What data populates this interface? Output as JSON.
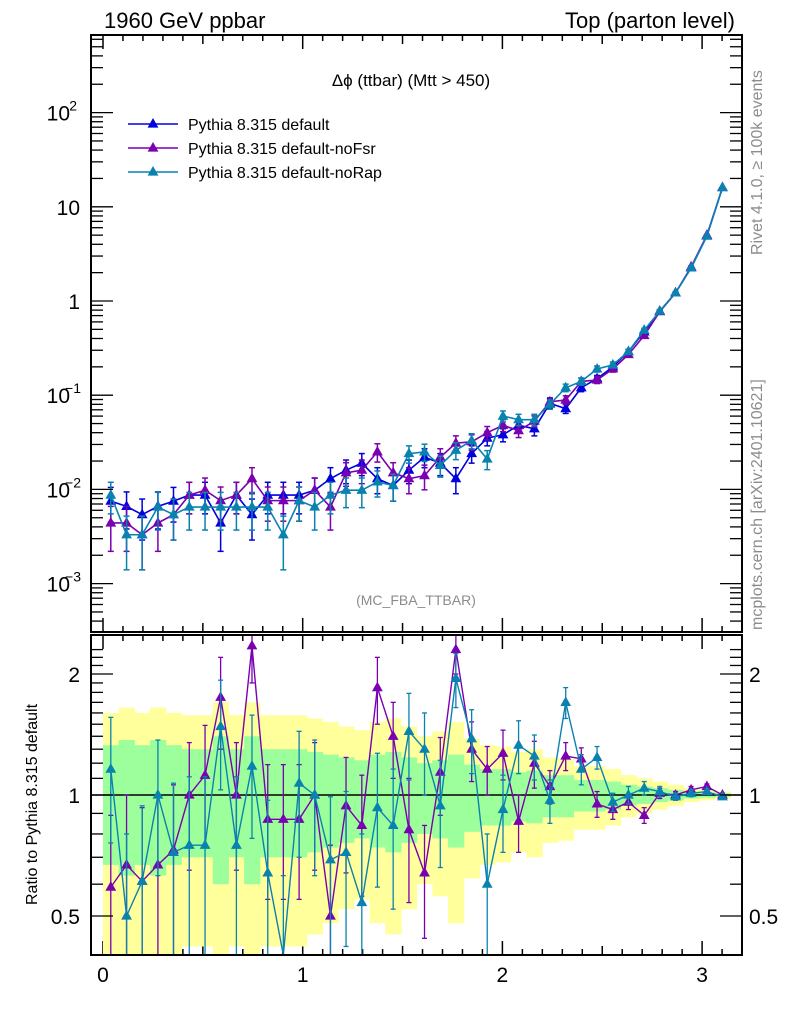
{
  "header": {
    "left_title": "1960 GeV ppbar",
    "right_title": "Top (parton level)"
  },
  "side_labels": {
    "rivet": "Rivet 4.1.0, ≥ 100k events",
    "mcplots": "mcplots.cern.ch [arXiv:2401.10621]"
  },
  "colors": {
    "default": "#0000dd",
    "noFsr": "#7a00b0",
    "noRap": "#0a82b0",
    "band_1sigma": "#9cff9c",
    "band_2sigma": "#ffff9c"
  },
  "chart_data": [
    {
      "type": "line",
      "panel": "main",
      "title": "Δϕ (ttbar) (Mtt > 450)",
      "analysis_label": "(MC_FBA_TTBAR)",
      "xlabel": "",
      "ylabel": "",
      "yscale": "log",
      "xlim": [
        0,
        3.2
      ],
      "ylim": [
        0.0003,
        900
      ],
      "x_ticks": [
        "0",
        "1",
        "2",
        "3"
      ],
      "y_ticks": [
        "10^-3",
        "10^-2",
        "10^-1",
        "1",
        "10",
        "10^2"
      ],
      "legend": [
        "Pythia 8.315 default",
        "Pythia 8.315 default-noFsr",
        "Pythia 8.315 default-noRap"
      ],
      "legend_position": "top-left",
      "x": [
        0.039,
        0.118,
        0.196,
        0.275,
        0.353,
        0.432,
        0.511,
        0.589,
        0.668,
        0.746,
        0.825,
        0.903,
        0.982,
        1.06,
        1.139,
        1.217,
        1.296,
        1.374,
        1.453,
        1.532,
        1.61,
        1.689,
        1.767,
        1.846,
        1.924,
        2.003,
        2.081,
        2.16,
        2.238,
        2.317,
        2.395,
        2.474,
        2.553,
        2.631,
        2.71,
        2.788,
        2.867,
        2.945,
        3.024,
        3.102
      ],
      "series": [
        {
          "name": "Pythia 8.315 default",
          "values": [
            0.0075,
            0.0066,
            0.0054,
            0.0066,
            0.0075,
            0.0087,
            0.0087,
            0.0044,
            0.0087,
            0.0054,
            0.0087,
            0.0087,
            0.0087,
            0.0098,
            0.013,
            0.016,
            0.019,
            0.013,
            0.011,
            0.016,
            0.022,
            0.019,
            0.013,
            0.024,
            0.035,
            0.038,
            0.048,
            0.044,
            0.082,
            0.072,
            0.12,
            0.15,
            0.2,
            0.29,
            0.47,
            0.78,
            1.22,
            2.25,
            4.9,
            16.0
          ],
          "errors": [
            0.003,
            0.0028,
            0.0025,
            0.0028,
            0.003,
            0.0032,
            0.0032,
            0.0022,
            0.0032,
            0.0025,
            0.0032,
            0.0032,
            0.0032,
            0.0034,
            0.004,
            0.0045,
            0.005,
            0.004,
            0.0035,
            0.0045,
            0.005,
            0.005,
            0.004,
            0.005,
            0.006,
            0.006,
            0.007,
            0.007,
            0.009,
            0.008,
            0.011,
            0.012,
            0.014,
            0.017,
            0.022,
            0.028,
            0.035,
            0.047,
            0.07,
            0.13
          ]
        },
        {
          "name": "Pythia 8.315 default-noFsr",
          "values": [
            0.0044,
            0.0044,
            0.0033,
            0.0044,
            0.0054,
            0.0087,
            0.0098,
            0.0076,
            0.0087,
            0.013,
            0.0076,
            0.0076,
            0.0076,
            0.0098,
            0.0065,
            0.015,
            0.016,
            0.025,
            0.015,
            0.013,
            0.014,
            0.022,
            0.031,
            0.032,
            0.04,
            0.048,
            0.042,
            0.053,
            0.085,
            0.089,
            0.14,
            0.145,
            0.19,
            0.27,
            0.43,
            0.77,
            1.22,
            2.3,
            5.0,
            16.0
          ],
          "errors": [
            0.0022,
            0.0022,
            0.0019,
            0.0022,
            0.0025,
            0.0032,
            0.0034,
            0.003,
            0.0032,
            0.004,
            0.003,
            0.003,
            0.003,
            0.0034,
            0.0028,
            0.0042,
            0.0045,
            0.0055,
            0.0042,
            0.004,
            0.0041,
            0.005,
            0.006,
            0.006,
            0.0065,
            0.007,
            0.0065,
            0.0073,
            0.009,
            0.0095,
            0.012,
            0.012,
            0.014,
            0.016,
            0.021,
            0.028,
            0.035,
            0.048,
            0.07,
            0.13
          ]
        },
        {
          "name": "Pythia 8.315 default-noRap",
          "values": [
            0.0087,
            0.0033,
            0.0033,
            0.0065,
            0.0054,
            0.0065,
            0.0065,
            0.0065,
            0.0065,
            0.0065,
            0.0065,
            0.0033,
            0.0076,
            0.0065,
            0.0087,
            0.0098,
            0.0098,
            0.012,
            0.011,
            0.024,
            0.025,
            0.018,
            0.026,
            0.033,
            0.021,
            0.06,
            0.055,
            0.055,
            0.08,
            0.12,
            0.14,
            0.19,
            0.21,
            0.29,
            0.49,
            0.78,
            1.22,
            2.25,
            4.9,
            16.0
          ],
          "errors": [
            0.0032,
            0.0019,
            0.0019,
            0.0028,
            0.0025,
            0.0028,
            0.0028,
            0.0028,
            0.0028,
            0.0028,
            0.0028,
            0.0019,
            0.003,
            0.0028,
            0.0032,
            0.0034,
            0.0034,
            0.0037,
            0.0035,
            0.005,
            0.0052,
            0.0045,
            0.0053,
            0.006,
            0.0048,
            0.008,
            0.0077,
            0.0077,
            0.009,
            0.011,
            0.012,
            0.014,
            0.015,
            0.017,
            0.022,
            0.028,
            0.035,
            0.047,
            0.07,
            0.13
          ]
        }
      ]
    },
    {
      "type": "line",
      "panel": "ratio",
      "ylabel": "Ratio to Pythia 8.315 default",
      "yscale": "log",
      "xlim": [
        0,
        3.2
      ],
      "ylim": [
        0.4,
        2.3
      ],
      "x_ticks": [
        "0",
        "1",
        "2",
        "3"
      ],
      "y_ticks": [
        "0.5",
        "1",
        "2"
      ],
      "reference_line": 1,
      "bands": {
        "one_sigma_half_width": [
          0.33,
          0.37,
          0.33,
          0.37,
          0.33,
          0.3,
          0.3,
          0.4,
          0.3,
          0.4,
          0.3,
          0.3,
          0.3,
          0.28,
          0.26,
          0.24,
          0.22,
          0.26,
          0.28,
          0.24,
          0.2,
          0.22,
          0.26,
          0.19,
          0.16,
          0.16,
          0.14,
          0.15,
          0.12,
          0.12,
          0.09,
          0.09,
          0.08,
          0.06,
          0.05,
          0.04,
          0.03,
          0.02,
          0.015,
          0.01
        ],
        "two_sigma_half_width": [
          0.6,
          0.65,
          0.6,
          0.65,
          0.6,
          0.58,
          0.58,
          0.7,
          0.58,
          0.7,
          0.58,
          0.58,
          0.58,
          0.55,
          0.52,
          0.48,
          0.45,
          0.52,
          0.55,
          0.48,
          0.4,
          0.44,
          0.52,
          0.38,
          0.33,
          0.32,
          0.28,
          0.3,
          0.24,
          0.23,
          0.18,
          0.18,
          0.16,
          0.12,
          0.1,
          0.08,
          0.06,
          0.04,
          0.03,
          0.02
        ]
      },
      "series": [
        {
          "name": "Pythia 8.315 default-noFsr",
          "values": [
            0.59,
            0.67,
            0.61,
            0.67,
            0.73,
            1.0,
            1.12,
            1.75,
            1.0,
            2.35,
            0.87,
            0.87,
            0.87,
            1.0,
            0.5,
            0.94,
            0.84,
            1.85,
            1.4,
            0.82,
            0.64,
            1.14,
            2.3,
            1.3,
            1.16,
            1.27,
            0.86,
            1.2,
            1.05,
            1.25,
            1.23,
            0.95,
            0.92,
            0.96,
            0.89,
            1.01,
            1.0,
            1.03,
            1.05,
            1.0
          ],
          "errors": [
            0.3,
            0.33,
            0.32,
            0.33,
            0.33,
            0.35,
            0.37,
            0.45,
            0.35,
            0.45,
            0.32,
            0.32,
            0.32,
            0.35,
            0.25,
            0.3,
            0.28,
            0.35,
            0.3,
            0.28,
            0.2,
            0.25,
            0.3,
            0.22,
            0.16,
            0.18,
            0.14,
            0.16,
            0.1,
            0.1,
            0.08,
            0.07,
            0.05,
            0.04,
            0.04,
            0.03,
            0.02,
            0.02,
            0.015,
            0.01
          ]
        },
        {
          "name": "Pythia 8.315 default-noRap",
          "values": [
            1.16,
            0.5,
            0.61,
            1.0,
            0.72,
            0.75,
            0.75,
            1.48,
            0.75,
            1.18,
            0.64,
            0.38,
            1.07,
            1.0,
            0.69,
            0.72,
            0.54,
            0.93,
            0.84,
            1.44,
            1.3,
            0.94,
            1.95,
            1.38,
            0.6,
            0.92,
            1.33,
            1.25,
            0.97,
            1.7,
            1.16,
            1.24,
            0.96,
            1.0,
            1.04,
            1.02,
            0.99,
            1.01,
            1.02,
            0.99
          ],
          "errors": [
            0.4,
            0.3,
            0.33,
            0.37,
            0.35,
            0.36,
            0.36,
            0.45,
            0.36,
            0.4,
            0.33,
            0.25,
            0.37,
            0.37,
            0.3,
            0.3,
            0.26,
            0.34,
            0.32,
            0.35,
            0.3,
            0.28,
            0.3,
            0.25,
            0.2,
            0.2,
            0.2,
            0.16,
            0.12,
            0.15,
            0.1,
            0.08,
            0.05,
            0.05,
            0.04,
            0.03,
            0.02,
            0.02,
            0.015,
            0.01
          ]
        }
      ]
    }
  ]
}
